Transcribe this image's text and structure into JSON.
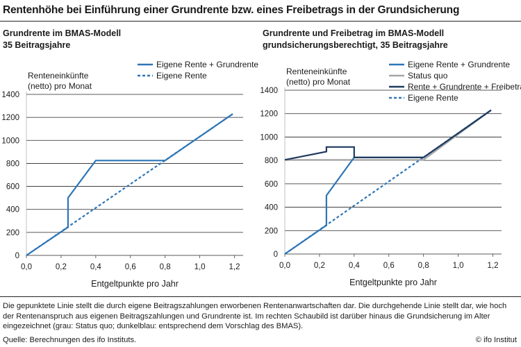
{
  "title": "Rentenhöhe bei Einführung einer Grundrente bzw. eines Freibetrags in der Grundsicherung",
  "left_panel": {
    "title_line1": "Grundrente im BMAS-Modell",
    "title_line2": "35 Beitragsjahre"
  },
  "right_panel": {
    "title_line1": "Grundrente und Freibetrag im BMAS-Modell",
    "title_line2": "grundsicherungsberechtigt, 35 Beitragsjahre"
  },
  "footnote": "Die gepunktete Linie stellt die durch eigene Beitragszahlungen erworbenen Rentenanwartschaften dar. Die durchgehende Linie stellt dar, wie hoch der Rentenanspruch aus eigenen Beitragszahlungen und Grundrente ist. Im rechten Schaubild ist darüber hinaus die Grundsicherung im Alter eingezeichnet (grau: Status quo; dunkelblau: entsprechend dem Vorschlag des BMAS).",
  "source": "Quelle: Berechnungen des ifo Instituts.",
  "copyright": "© ifo Institut",
  "colors": {
    "light_blue": "#2e75b6",
    "dark_blue": "#1f3a5f",
    "gray": "#a6a6a6",
    "grid": "#222222"
  },
  "chart_data": [
    {
      "type": "line",
      "xlabel": "Entgeltpunkte pro Jahr",
      "ylabel": "Renteneinkünfte (netto) pro Monat",
      "xlim": [
        0,
        1.25
      ],
      "ylim": [
        0,
        1400
      ],
      "x_ticks": [
        "0,0",
        "0,2",
        "0,4",
        "0,6",
        "0,8",
        "1,0",
        "1,2"
      ],
      "y_ticks": [
        "0",
        "200",
        "400",
        "600",
        "800",
        "1000",
        "1200",
        "1400"
      ],
      "grid": "horizontal",
      "legend_position": "top-right",
      "series": [
        {
          "name": "Eigene Rente + Grundrente",
          "color": "#2e75b6",
          "style": "solid",
          "x": [
            0,
            0.24,
            0.24,
            0.4,
            0.8,
            1.19
          ],
          "y": [
            0,
            245,
            500,
            825,
            825,
            1230
          ]
        },
        {
          "name": "Eigene Rente",
          "color": "#2e75b6",
          "style": "dashed",
          "x": [
            0,
            1.19
          ],
          "y": [
            0,
            1230
          ]
        }
      ]
    },
    {
      "type": "line",
      "xlabel": "Entgeltpunkte pro Jahr",
      "ylabel": "Renteneinkünfte (netto) pro Monat",
      "xlim": [
        0,
        1.25
      ],
      "ylim": [
        0,
        1400
      ],
      "x_ticks": [
        "0,0",
        "0,2",
        "0,4",
        "0,6",
        "0,8",
        "1,0",
        "1,2"
      ],
      "y_ticks": [
        "0",
        "200",
        "400",
        "600",
        "800",
        "1000",
        "1200",
        "1400"
      ],
      "grid": "horizontal",
      "legend_position": "top-right",
      "series": [
        {
          "name": "Eigene Rente + Grundrente",
          "color": "#2e75b6",
          "style": "solid",
          "x": [
            0,
            0.24,
            0.24,
            0.4,
            0.8,
            1.19
          ],
          "y": [
            0,
            245,
            500,
            825,
            825,
            1230
          ]
        },
        {
          "name": "Status quo",
          "color": "#a6a6a6",
          "style": "solid",
          "x": [
            0,
            0.8,
            1.19
          ],
          "y": [
            805,
            805,
            1230
          ]
        },
        {
          "name": "Rente + Grundrente + Freibetrag",
          "color": "#1f3a5f",
          "style": "solid",
          "x": [
            0,
            0.24,
            0.24,
            0.4,
            0.4,
            0.8,
            1.19
          ],
          "y": [
            805,
            875,
            915,
            915,
            825,
            825,
            1230
          ]
        },
        {
          "name": "Eigene Rente",
          "color": "#2e75b6",
          "style": "dashed",
          "x": [
            0,
            1.19
          ],
          "y": [
            0,
            1230
          ]
        }
      ]
    }
  ]
}
